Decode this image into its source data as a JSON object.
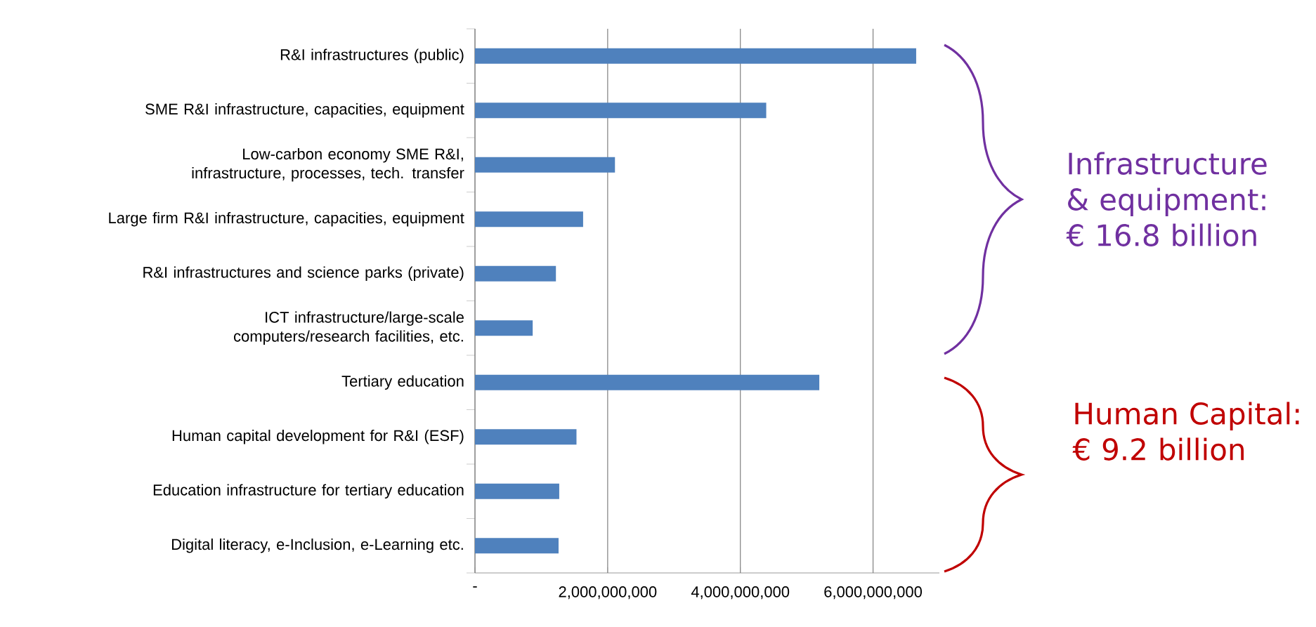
{
  "chart_data": {
    "type": "bar",
    "orientation": "horizontal",
    "categories": [
      "R&I infrastructures (public)",
      "SME R&I infrastructure, capacities, equipment",
      "Low-carbon economy SME R&I, infrastructure, processes, tech. transfer",
      "Large firm R&I infrastructure, capacities, equipment",
      "R&I infrastructures and science parks (private)",
      "ICT infrastructure/large-scale computers/research facilities, etc.",
      "Tertiary education",
      "Human capital development for R&I (ESF)",
      "Education infrastructure for tertiary education",
      "Digital literacy, e-Inclusion, e-Learning etc."
    ],
    "values": [
      6650000000,
      4390000000,
      2110000000,
      1630000000,
      1220000000,
      870000000,
      5190000000,
      1530000000,
      1270000000,
      1260000000
    ],
    "color": "#4f81bd",
    "xlim": [
      0,
      7000000000
    ],
    "xticks": [
      {
        "value": 0,
        "label": "-"
      },
      {
        "value": 2000000000,
        "label": "2,000,000,000"
      },
      {
        "value": 4000000000,
        "label": "4,000,000,000"
      },
      {
        "value": 6000000000,
        "label": "6,000,000,000"
      }
    ],
    "grid": "x",
    "annotations": [
      "Infrastructure & equipment: € 16.8 billion",
      "Human Capital: € 9.2 billion"
    ]
  }
}
